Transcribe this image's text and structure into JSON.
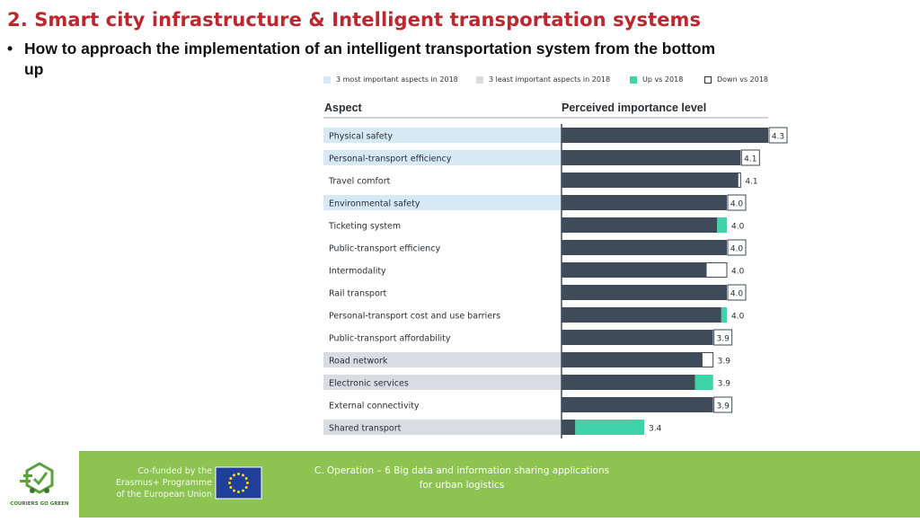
{
  "slide": {
    "title": "2. Smart city infrastructure & Intelligent transportation systems",
    "bullet_text": "How to approach the implementation of an intelligent transportation system from the bottom up"
  },
  "legend": {
    "most_important": "3 most important aspects in 2018",
    "least_important": "3 least important aspects in 2018",
    "up": "Up vs 2018",
    "down": "Down vs 2018"
  },
  "colors": {
    "title": "#c0262d",
    "bar": "#3f4b58",
    "most_important_highlight": "#d6e9f5",
    "least_important_highlight": "#d9dde1",
    "up": "#3fd4a8",
    "down": "#ffffff",
    "footer": "#8dc351"
  },
  "chart_data": {
    "type": "bar",
    "orientation": "horizontal",
    "column_headers": {
      "category": "Aspect",
      "value": "Perceived importance level"
    },
    "categories": [
      "Physical safety",
      "Personal-transport efficiency",
      "Travel comfort",
      "Environmental safety",
      "Ticketing system",
      "Public-transport efficiency",
      "Intermodality",
      "Rail transport",
      "Personal-transport cost and use barriers",
      "Public-transport affordability",
      "Road network",
      "Electronic services",
      "External connectivity",
      "Shared transport"
    ],
    "values": [
      4.3,
      4.1,
      4.1,
      4.0,
      4.0,
      4.0,
      4.0,
      4.0,
      4.0,
      3.9,
      3.9,
      3.9,
      3.9,
      3.4
    ],
    "value_labels": [
      "4.3",
      "4.1",
      "4.1",
      "4.0",
      "4.0",
      "4.0",
      "4.0",
      "4.0",
      "4.0",
      "3.9",
      "3.9",
      "3.9",
      "3.9",
      "3.4"
    ],
    "base_values": [
      4.3,
      4.1,
      4.08,
      4.0,
      3.93,
      4.0,
      3.85,
      4.0,
      3.96,
      3.9,
      3.82,
      3.77,
      3.9,
      2.9
    ],
    "change": [
      "none",
      "none",
      "down",
      "none",
      "up",
      "none",
      "down",
      "none",
      "up",
      "none",
      "down",
      "up",
      "none",
      "up"
    ],
    "highlight": [
      "most",
      "most",
      "none",
      "most",
      "none",
      "none",
      "none",
      "none",
      "none",
      "none",
      "least",
      "least",
      "none",
      "least"
    ],
    "xlim": [
      2.8,
      4.3
    ],
    "grid": false,
    "legend_position": "top"
  },
  "footer": {
    "cofund_lines": [
      "Co-funded by the",
      "Erasmus+ Programme",
      "of the European Union"
    ],
    "caption_lines": [
      "C. Operation – 6 Big data and information sharing applications",
      "for urban logistics"
    ],
    "logo_text": "COURIERS GO GREEN"
  }
}
